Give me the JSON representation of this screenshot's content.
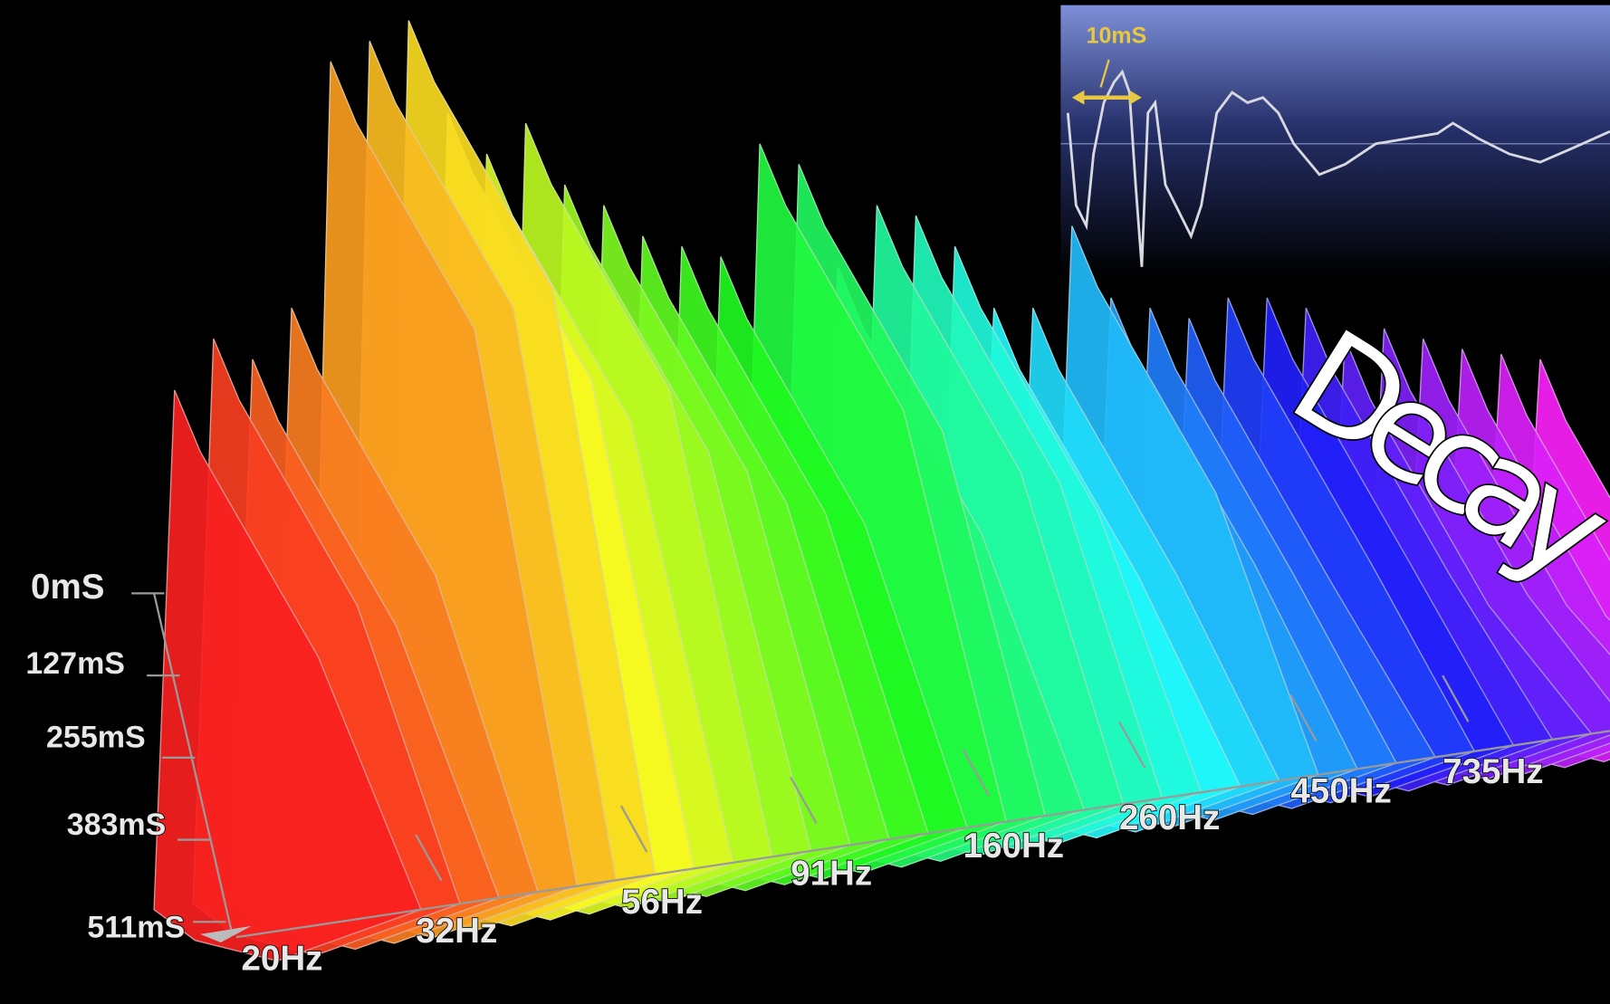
{
  "title": "Decay",
  "inset": {
    "label": "10mS"
  },
  "time_labels": [
    "0mS",
    "127mS",
    "255mS",
    "383mS",
    "511mS"
  ],
  "frequency_labels": [
    "20Hz",
    "32Hz",
    "56Hz",
    "91Hz",
    "160Hz",
    "260Hz",
    "450Hz",
    "735Hz"
  ]
}
